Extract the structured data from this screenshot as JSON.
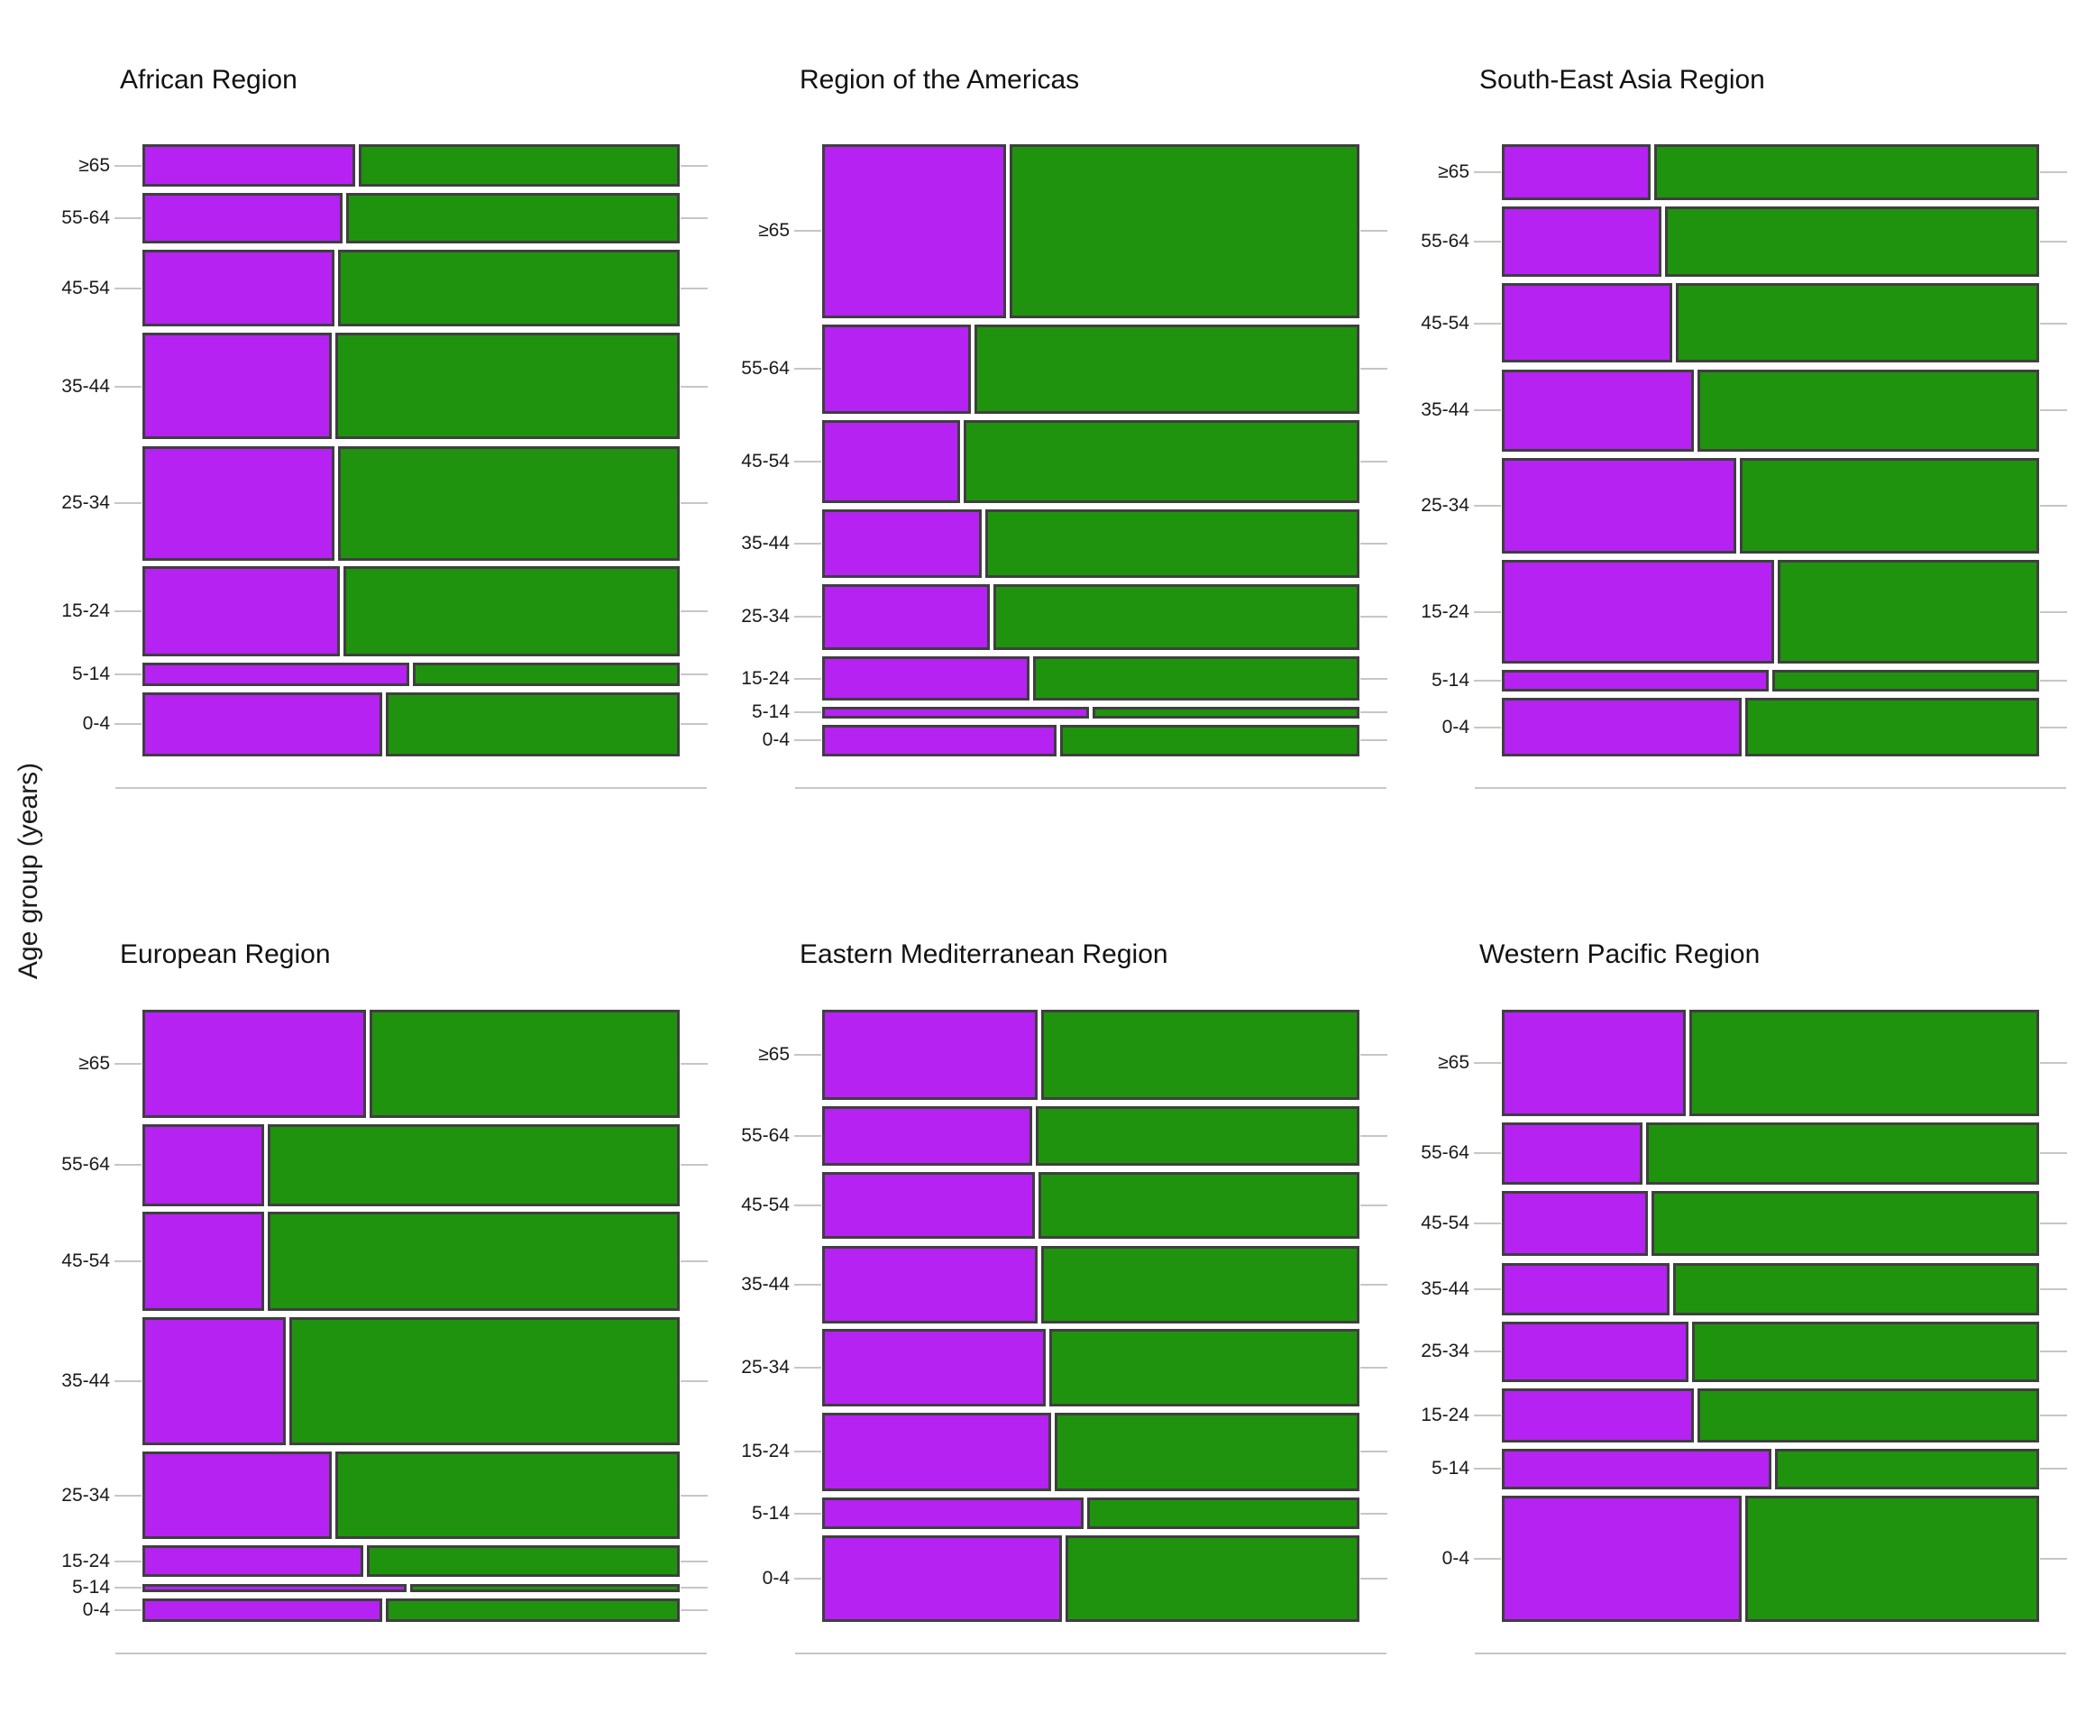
{
  "figure": {
    "y_axis_title": "Age group (years)"
  },
  "colors": {
    "purple_segment": "#B522F2",
    "green_segment": "#20930E",
    "bar_border": "#3F3F3F",
    "tick_and_axis": "#C6C6C6",
    "text": "#1A1A1A"
  },
  "chart_data": {
    "type": "mosaic",
    "orientation": "horizontal-stacked-by-age",
    "age_groups_top_to_bottom": [
      "≥65",
      "55-64",
      "45-54",
      "35-44",
      "25-34",
      "15-24",
      "5-14",
      "0-4"
    ],
    "note_axes": "bar height = share of total, purple_fraction = left segment width share",
    "panels": [
      {
        "title": "African Region",
        "rows": [
          {
            "age": "≥65",
            "height_share": 0.075,
            "purple_fraction": 0.4
          },
          {
            "age": "55-64",
            "height_share": 0.089,
            "purple_fraction": 0.375
          },
          {
            "age": "45-54",
            "height_share": 0.135,
            "purple_fraction": 0.36
          },
          {
            "age": "35-44",
            "height_share": 0.188,
            "purple_fraction": 0.355
          },
          {
            "age": "25-34",
            "height_share": 0.201,
            "purple_fraction": 0.36
          },
          {
            "age": "15-24",
            "height_share": 0.158,
            "purple_fraction": 0.37
          },
          {
            "age": "5-14",
            "height_share": 0.041,
            "purple_fraction": 0.5
          },
          {
            "age": "0-4",
            "height_share": 0.113,
            "purple_fraction": 0.45
          }
        ]
      },
      {
        "title": "Region of the Americas",
        "rows": [
          {
            "age": "≥65",
            "height_share": 0.306,
            "purple_fraction": 0.345
          },
          {
            "age": "55-64",
            "height_share": 0.157,
            "purple_fraction": 0.28
          },
          {
            "age": "45-54",
            "height_share": 0.146,
            "purple_fraction": 0.26
          },
          {
            "age": "35-44",
            "height_share": 0.121,
            "purple_fraction": 0.3
          },
          {
            "age": "25-34",
            "height_share": 0.116,
            "purple_fraction": 0.315
          },
          {
            "age": "15-24",
            "height_share": 0.078,
            "purple_fraction": 0.39
          },
          {
            "age": "5-14",
            "height_share": 0.02,
            "purple_fraction": 0.5
          },
          {
            "age": "0-4",
            "height_share": 0.056,
            "purple_fraction": 0.44
          }
        ]
      },
      {
        "title": "South-East Asia Region",
        "rows": [
          {
            "age": "≥65",
            "height_share": 0.099,
            "purple_fraction": 0.28
          },
          {
            "age": "55-64",
            "height_share": 0.124,
            "purple_fraction": 0.3
          },
          {
            "age": "45-54",
            "height_share": 0.14,
            "purple_fraction": 0.32
          },
          {
            "age": "35-44",
            "height_share": 0.145,
            "purple_fraction": 0.36
          },
          {
            "age": "25-34",
            "height_share": 0.168,
            "purple_fraction": 0.44
          },
          {
            "age": "15-24",
            "height_share": 0.183,
            "purple_fraction": 0.51
          },
          {
            "age": "5-14",
            "height_share": 0.038,
            "purple_fraction": 0.5
          },
          {
            "age": "0-4",
            "height_share": 0.103,
            "purple_fraction": 0.45
          }
        ]
      },
      {
        "title": "European Region",
        "rows": [
          {
            "age": "≥65",
            "height_share": 0.19,
            "purple_fraction": 0.42
          },
          {
            "age": "55-64",
            "height_share": 0.144,
            "purple_fraction": 0.23
          },
          {
            "age": "45-54",
            "height_share": 0.174,
            "purple_fraction": 0.23
          },
          {
            "age": "35-44",
            "height_share": 0.226,
            "purple_fraction": 0.27
          },
          {
            "age": "25-34",
            "height_share": 0.154,
            "purple_fraction": 0.355
          },
          {
            "age": "15-24",
            "height_share": 0.056,
            "purple_fraction": 0.415
          },
          {
            "age": "5-14",
            "height_share": 0.015,
            "purple_fraction": 0.495
          },
          {
            "age": "0-4",
            "height_share": 0.041,
            "purple_fraction": 0.45
          }
        ]
      },
      {
        "title": "Eastern Mediterranean Region",
        "rows": [
          {
            "age": "≥65",
            "height_share": 0.159,
            "purple_fraction": 0.405
          },
          {
            "age": "55-64",
            "height_share": 0.105,
            "purple_fraction": 0.395
          },
          {
            "age": "45-54",
            "height_share": 0.118,
            "purple_fraction": 0.4
          },
          {
            "age": "35-44",
            "height_share": 0.136,
            "purple_fraction": 0.405
          },
          {
            "age": "25-34",
            "height_share": 0.136,
            "purple_fraction": 0.42
          },
          {
            "age": "15-24",
            "height_share": 0.138,
            "purple_fraction": 0.43
          },
          {
            "age": "5-14",
            "height_share": 0.056,
            "purple_fraction": 0.49
          },
          {
            "age": "0-4",
            "height_share": 0.152,
            "purple_fraction": 0.45
          }
        ]
      },
      {
        "title": "Western Pacific Region",
        "rows": [
          {
            "age": "≥65",
            "height_share": 0.187,
            "purple_fraction": 0.345
          },
          {
            "age": "55-64",
            "height_share": 0.11,
            "purple_fraction": 0.265
          },
          {
            "age": "45-54",
            "height_share": 0.115,
            "purple_fraction": 0.275
          },
          {
            "age": "35-44",
            "height_share": 0.092,
            "purple_fraction": 0.315
          },
          {
            "age": "25-34",
            "height_share": 0.107,
            "purple_fraction": 0.35
          },
          {
            "age": "15-24",
            "height_share": 0.095,
            "purple_fraction": 0.36
          },
          {
            "age": "5-14",
            "height_share": 0.072,
            "purple_fraction": 0.505
          },
          {
            "age": "0-4",
            "height_share": 0.222,
            "purple_fraction": 0.45
          }
        ]
      }
    ]
  }
}
